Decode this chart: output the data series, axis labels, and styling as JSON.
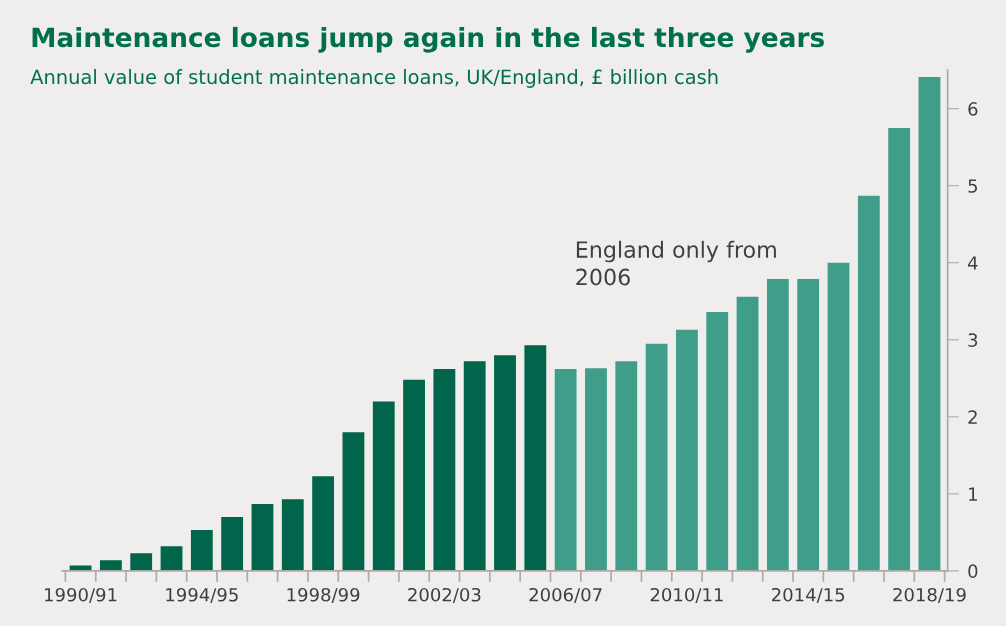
{
  "chart_data": {
    "type": "bar",
    "title": "Maintenance loans jump again in the last three years",
    "subtitle": "Annual value of student maintenance loans, UK/England, £ billion cash",
    "categories": [
      "1990/91",
      null,
      null,
      null,
      "1994/95",
      null,
      null,
      null,
      "1998/99",
      null,
      null,
      null,
      "2002/03",
      null,
      null,
      null,
      "2006/07",
      null,
      null,
      null,
      "2010/11",
      null,
      null,
      null,
      "2014/15",
      null,
      null,
      null,
      "2018/19"
    ],
    "values": [
      0.07,
      0.14,
      0.23,
      0.32,
      0.53,
      0.7,
      0.87,
      0.93,
      1.23,
      1.8,
      2.2,
      2.48,
      2.62,
      2.72,
      2.8,
      2.93,
      2.62,
      2.63,
      2.72,
      2.95,
      3.13,
      3.36,
      3.56,
      3.79,
      3.79,
      4.0,
      4.87,
      5.75,
      6.41
    ],
    "colors": [
      "#00654a",
      "#00654a",
      "#00654a",
      "#00654a",
      "#00654a",
      "#00654a",
      "#00654a",
      "#00654a",
      "#00654a",
      "#00654a",
      "#00654a",
      "#00654a",
      "#00654a",
      "#00654a",
      "#00654a",
      "#00654a",
      "#3f9e89",
      "#3f9e89",
      "#3f9e89",
      "#3f9e89",
      "#3f9e89",
      "#3f9e89",
      "#3f9e89",
      "#3f9e89",
      "#3f9e89",
      "#3f9e89",
      "#3f9e89",
      "#3f9e89",
      "#3f9e89"
    ],
    "ylim": [
      0,
      6.5
    ],
    "yticks": [
      0,
      1,
      2,
      3,
      4,
      5,
      6
    ],
    "grid": false,
    "legend": false,
    "annotations": [
      "England only from\n2006"
    ]
  }
}
